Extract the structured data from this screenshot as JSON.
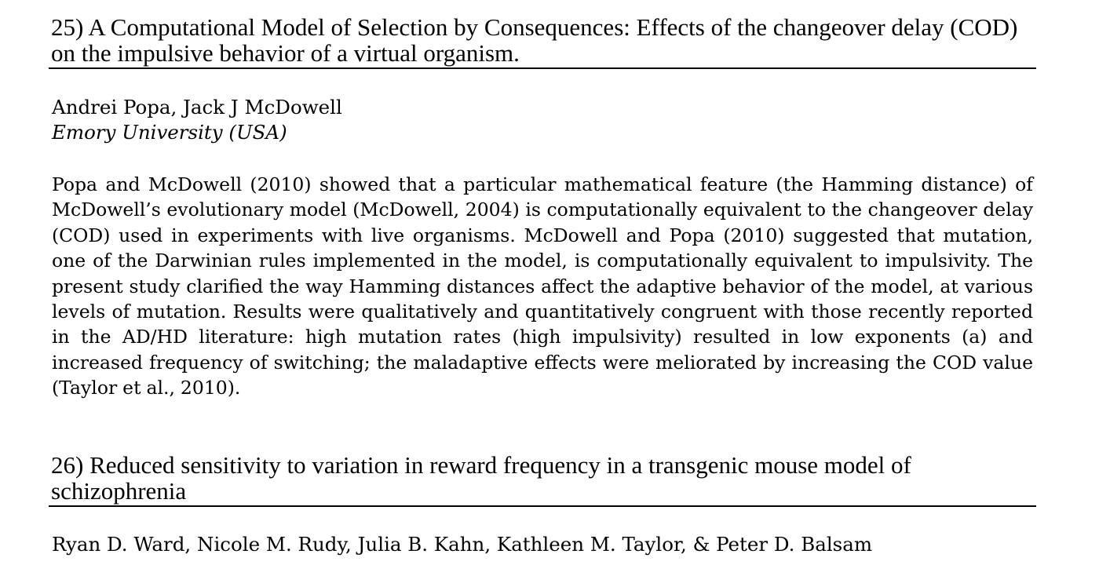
{
  "entries": [
    {
      "title": "25) A Computational Model of Selection by Consequences: Effects of the changeover delay (COD) on the impulsive behavior of a virtual organism.",
      "authors": "Andrei Popa, Jack J McDowell",
      "affiliation": "Emory University (USA)",
      "abstract": "Popa and McDowell (2010) showed that a particular mathematical feature (the Hamming distance) of McDowell’s evolutionary model (McDowell, 2004) is computationally equivalent to the changeover delay (COD) used in experiments with live organisms. McDowell and Popa (2010) suggested that mutation, one of the Darwinian rules implemented in the model, is computationally equivalent to impulsivity. The present study clarified the way Hamming distances affect the adaptive behavior of the model, at various levels of mutation. Results were qualitatively and quantitatively congruent with those recently reported in the AD/HD literature: high mutation rates (high impulsivity) resulted in low exponents (a) and increased frequency of switching; the maladaptive effects were meliorated by increasing the COD value (Taylor et al., 2010)."
    },
    {
      "title": "26) Reduced sensitivity to variation in reward frequency in a transgenic mouse model of schizophrenia",
      "authors": "Ryan D. Ward, Nicole M. Rudy, Julia B. Kahn, Kathleen M. Taylor, & Peter D. Balsam"
    }
  ]
}
